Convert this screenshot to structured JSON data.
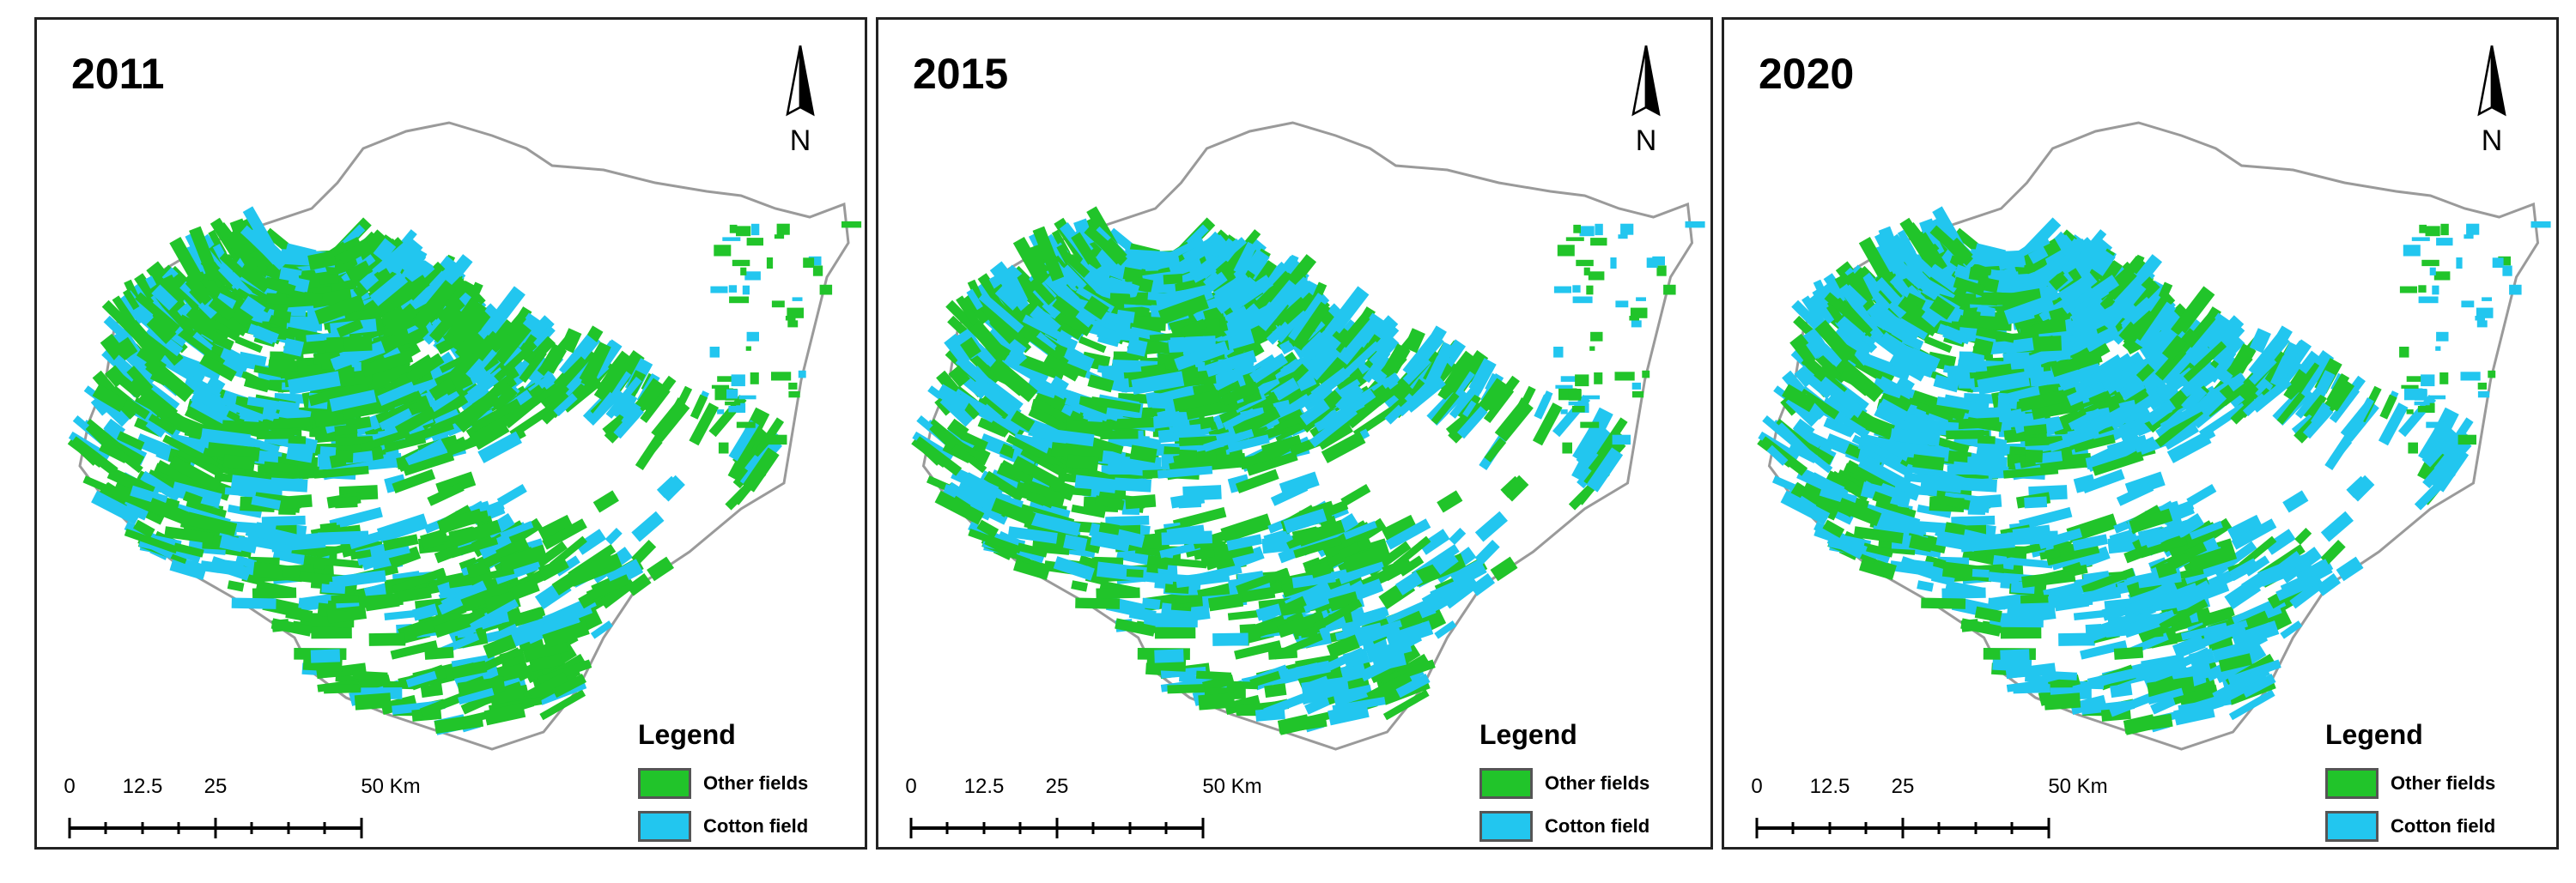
{
  "colors": {
    "other_fields": "#21c42a",
    "cotton_field": "#22c6ef",
    "boundary": "#9a9a9a"
  },
  "panels": [
    {
      "year": "2011",
      "north_label": "N",
      "legend_title": "Legend",
      "legend_items": [
        {
          "label": "Other fields",
          "color": "#21c42a"
        },
        {
          "label": "Cotton field",
          "color": "#22c6ef"
        }
      ],
      "scale_labels": [
        "0",
        "12.5",
        "25",
        "50 Km"
      ],
      "cotton_share": 0.35
    },
    {
      "year": "2015",
      "north_label": "N",
      "legend_title": "Legend",
      "legend_items": [
        {
          "label": "Other fields",
          "color": "#21c42a"
        },
        {
          "label": "Cotton field",
          "color": "#22c6ef"
        }
      ],
      "scale_labels": [
        "0",
        "12.5",
        "25",
        "50 Km"
      ],
      "cotton_share": 0.5
    },
    {
      "year": "2020",
      "north_label": "N",
      "legend_title": "Legend",
      "legend_items": [
        {
          "label": "Other fields",
          "color": "#21c42a"
        },
        {
          "label": "Cotton field",
          "color": "#22c6ef"
        }
      ],
      "scale_labels": [
        "0",
        "12.5",
        "25",
        "50 Km"
      ],
      "cotton_share": 0.65
    }
  ]
}
